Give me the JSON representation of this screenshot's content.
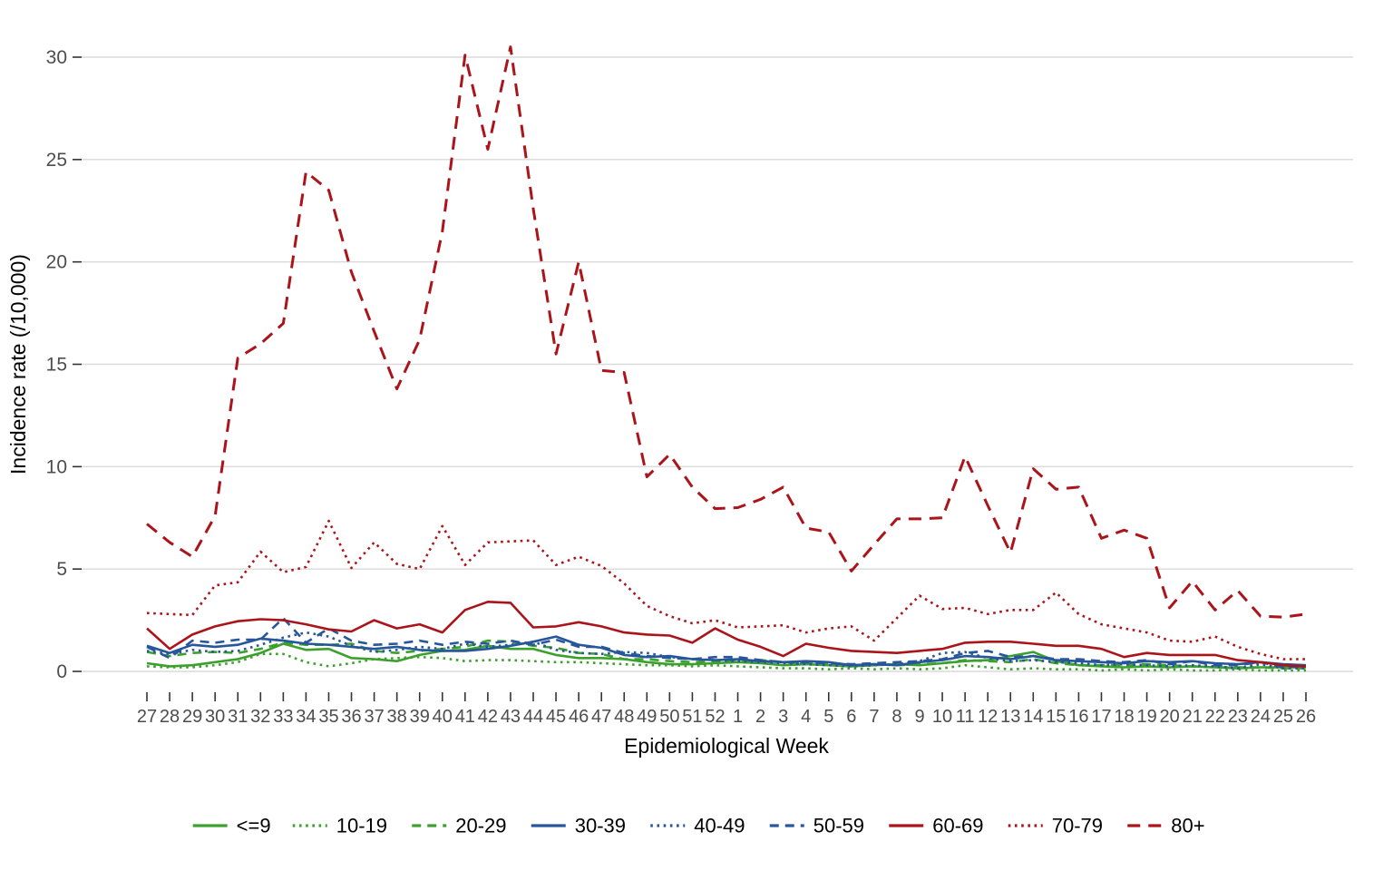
{
  "chart_data": {
    "type": "line",
    "title": "",
    "xlabel": "Epidemiological Week",
    "ylabel": "Incidence rate (/10,000)",
    "x_tick_labels": [
      "27",
      "28",
      "29",
      "30",
      "31",
      "32",
      "33",
      "34",
      "35",
      "36",
      "37",
      "38",
      "39",
      "40",
      "41",
      "42",
      "43",
      "44",
      "45",
      "46",
      "47",
      "48",
      "49",
      "50",
      "51",
      "52",
      "1",
      "2",
      "3",
      "4",
      "5",
      "6",
      "7",
      "8",
      "9",
      "10",
      "11",
      "12",
      "13",
      "14",
      "15",
      "16",
      "17",
      "18",
      "19",
      "20",
      "21",
      "22",
      "23",
      "24",
      "25",
      "26"
    ],
    "y_ticks": [
      0,
      5,
      10,
      15,
      20,
      25,
      30
    ],
    "ylim": [
      0,
      30.5
    ],
    "grid": "horizontal-major-only",
    "legend_position": "bottom",
    "axis_text_color": "#4d4d4d",
    "grid_color": "#dadada",
    "tick_color": "#333333",
    "series": [
      {
        "name": "<=9",
        "color": "#3ca02d",
        "dash": "solid",
        "width": 2.6,
        "values": [
          0.4,
          0.25,
          0.3,
          0.45,
          0.6,
          0.9,
          1.35,
          1.05,
          1.1,
          0.65,
          0.6,
          0.5,
          0.8,
          1.0,
          1.05,
          1.25,
          1.1,
          1.1,
          0.8,
          0.65,
          0.65,
          0.6,
          0.45,
          0.35,
          0.35,
          0.4,
          0.45,
          0.4,
          0.3,
          0.35,
          0.3,
          0.25,
          0.3,
          0.35,
          0.3,
          0.4,
          0.5,
          0.55,
          0.75,
          0.95,
          0.5,
          0.3,
          0.25,
          0.2,
          0.25,
          0.2,
          0.25,
          0.2,
          0.15,
          0.2,
          0.2,
          0.2
        ]
      },
      {
        "name": "10-19",
        "color": "#3ca02d",
        "dash": "dotted",
        "width": 2.6,
        "values": [
          0.25,
          0.2,
          0.2,
          0.3,
          0.45,
          0.85,
          0.85,
          0.45,
          0.25,
          0.4,
          0.6,
          0.65,
          0.7,
          0.65,
          0.5,
          0.55,
          0.55,
          0.5,
          0.45,
          0.45,
          0.4,
          0.35,
          0.3,
          0.3,
          0.25,
          0.3,
          0.25,
          0.2,
          0.15,
          0.15,
          0.1,
          0.15,
          0.1,
          0.15,
          0.1,
          0.15,
          0.3,
          0.2,
          0.1,
          0.15,
          0.1,
          0.1,
          0.05,
          0.1,
          0.05,
          0.1,
          0.05,
          0.05,
          0.1,
          0.05,
          0.05,
          0.05
        ]
      },
      {
        "name": "20-29",
        "color": "#3ca02d",
        "dash": "dashed",
        "width": 2.6,
        "values": [
          0.95,
          0.75,
          0.9,
          0.95,
          0.9,
          1.1,
          1.4,
          1.3,
          1.3,
          1.35,
          1.0,
          0.9,
          1.0,
          1.1,
          1.2,
          1.5,
          1.45,
          1.25,
          1.15,
          0.9,
          0.85,
          0.6,
          0.6,
          0.5,
          0.45,
          0.5,
          0.5,
          0.55,
          0.45,
          0.4,
          0.35,
          0.3,
          0.35,
          0.3,
          0.35,
          0.4,
          0.55,
          0.5,
          0.45,
          0.6,
          0.4,
          0.3,
          0.3,
          0.3,
          0.35,
          0.3,
          0.25,
          0.2,
          0.2,
          0.2,
          0.15,
          0.15
        ]
      },
      {
        "name": "30-39",
        "color": "#27569b",
        "dash": "solid",
        "width": 2.6,
        "values": [
          1.25,
          0.9,
          1.3,
          1.2,
          1.3,
          1.6,
          1.5,
          1.35,
          1.3,
          1.2,
          1.1,
          1.2,
          1.05,
          1.0,
          1.0,
          1.1,
          1.25,
          1.45,
          1.7,
          1.3,
          1.15,
          0.8,
          0.7,
          0.75,
          0.6,
          0.55,
          0.6,
          0.5,
          0.45,
          0.5,
          0.45,
          0.3,
          0.35,
          0.3,
          0.45,
          0.55,
          0.75,
          0.7,
          0.6,
          0.75,
          0.55,
          0.5,
          0.45,
          0.4,
          0.5,
          0.45,
          0.5,
          0.4,
          0.35,
          0.45,
          0.35,
          0.3
        ]
      },
      {
        "name": "40-49",
        "color": "#27569b",
        "dash": "dotted",
        "width": 2.6,
        "values": [
          1.0,
          0.85,
          1.05,
          0.95,
          1.0,
          1.3,
          1.65,
          1.9,
          1.7,
          1.25,
          0.95,
          1.05,
          1.2,
          1.1,
          1.35,
          1.2,
          1.3,
          1.45,
          1.05,
          0.9,
          0.85,
          0.95,
          0.9,
          0.7,
          0.6,
          0.55,
          0.5,
          0.45,
          0.4,
          0.35,
          0.3,
          0.25,
          0.3,
          0.35,
          0.5,
          0.9,
          0.95,
          0.65,
          0.5,
          0.55,
          0.45,
          0.4,
          0.3,
          0.35,
          0.3,
          0.25,
          0.3,
          0.25,
          0.15,
          0.35,
          0.15,
          0.15
        ]
      },
      {
        "name": "50-59",
        "color": "#27569b",
        "dash": "dashed",
        "width": 2.6,
        "values": [
          1.2,
          0.65,
          1.5,
          1.4,
          1.55,
          1.55,
          2.6,
          1.4,
          2.1,
          1.5,
          1.3,
          1.35,
          1.5,
          1.3,
          1.45,
          1.35,
          1.5,
          1.3,
          1.55,
          1.2,
          1.2,
          0.9,
          0.75,
          0.65,
          0.6,
          0.7,
          0.7,
          0.55,
          0.45,
          0.45,
          0.4,
          0.35,
          0.4,
          0.45,
          0.5,
          0.6,
          0.9,
          1.0,
          0.7,
          0.75,
          0.6,
          0.6,
          0.5,
          0.45,
          0.55,
          0.35,
          0.5,
          0.3,
          0.3,
          0.45,
          0.2,
          0.25
        ]
      },
      {
        "name": "60-69",
        "color": "#aa141a",
        "dash": "solid",
        "width": 2.6,
        "values": [
          2.1,
          1.1,
          1.8,
          2.2,
          2.45,
          2.55,
          2.5,
          2.3,
          2.05,
          1.95,
          2.5,
          2.1,
          2.3,
          1.9,
          3.0,
          3.4,
          3.35,
          2.15,
          2.2,
          2.4,
          2.2,
          1.9,
          1.8,
          1.75,
          1.4,
          2.1,
          1.55,
          1.2,
          0.75,
          1.35,
          1.15,
          1.0,
          0.95,
          0.9,
          1.0,
          1.1,
          1.4,
          1.45,
          1.45,
          1.35,
          1.25,
          1.25,
          1.1,
          0.7,
          0.9,
          0.8,
          0.8,
          0.8,
          0.55,
          0.45,
          0.3,
          0.25
        ]
      },
      {
        "name": "70-79",
        "color": "#aa141a",
        "dash": "dotted",
        "width": 2.6,
        "values": [
          2.85,
          2.8,
          2.75,
          4.2,
          4.35,
          5.85,
          4.85,
          5.1,
          7.35,
          5.05,
          6.3,
          5.25,
          5.0,
          7.1,
          5.2,
          6.3,
          6.35,
          6.4,
          5.2,
          5.6,
          5.15,
          4.3,
          3.2,
          2.7,
          2.35,
          2.5,
          2.15,
          2.2,
          2.25,
          1.9,
          2.1,
          2.2,
          1.5,
          2.6,
          3.7,
          3.05,
          3.1,
          2.8,
          3.0,
          3.0,
          3.85,
          2.8,
          2.3,
          2.1,
          1.9,
          1.5,
          1.45,
          1.7,
          1.2,
          0.85,
          0.6,
          0.6
        ]
      },
      {
        "name": "80+",
        "color": "#aa141a",
        "dash": "dashed-long",
        "width": 3,
        "values": [
          7.2,
          6.3,
          5.6,
          7.6,
          15.3,
          16.0,
          17.0,
          24.4,
          23.5,
          19.5,
          16.6,
          13.8,
          16.2,
          21.5,
          30.1,
          25.5,
          30.5,
          22.6,
          15.5,
          20.0,
          14.7,
          14.6,
          9.5,
          10.6,
          9.0,
          7.95,
          8.0,
          8.4,
          9.0,
          7.0,
          6.8,
          4.9,
          6.2,
          7.45,
          7.45,
          7.5,
          10.5,
          8.1,
          5.8,
          9.9,
          8.9,
          9.0,
          6.5,
          6.9,
          6.5,
          3.1,
          4.4,
          3.0,
          3.95,
          2.7,
          2.65,
          2.8
        ]
      }
    ]
  }
}
